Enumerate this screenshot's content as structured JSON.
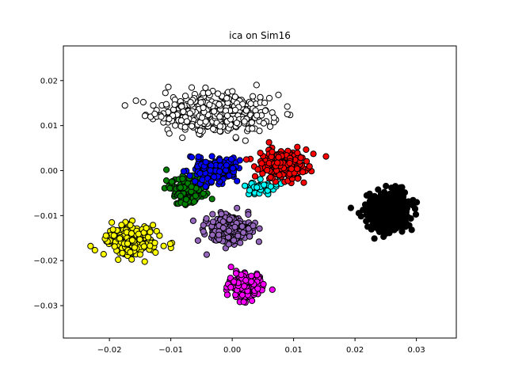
{
  "chart_data": {
    "type": "scatter",
    "title": "ica on Sim16",
    "xlabel": "",
    "ylabel": "",
    "xlim": [
      -0.0275,
      0.0365
    ],
    "ylim": [
      -0.0372,
      0.0277
    ],
    "xticks": [
      -0.02,
      -0.01,
      0.0,
      0.01,
      0.02,
      0.03
    ],
    "xtick_labels": [
      "−0.02",
      "−0.01",
      "0.00",
      "0.01",
      "0.02",
      "0.03"
    ],
    "yticks": [
      -0.03,
      -0.02,
      -0.01,
      0.0,
      0.01,
      0.02
    ],
    "ytick_labels": [
      "−0.03",
      "−0.02",
      "−0.01",
      "0.00",
      "0.01",
      "0.02"
    ],
    "grid": false,
    "legend": "none",
    "marker_edge_color": "#000000",
    "series": [
      {
        "color": "#ffffff",
        "center": [
          -0.003,
          0.0125
        ],
        "spread": [
          0.0085,
          0.0038
        ],
        "count": 420
      },
      {
        "color": "#000000",
        "center": [
          0.0255,
          -0.009
        ],
        "spread": [
          0.0033,
          0.0037
        ],
        "count": 520
      },
      {
        "color": "#ffff00",
        "center": [
          -0.0165,
          -0.0155
        ],
        "spread": [
          0.0036,
          0.0028
        ],
        "count": 330
      },
      {
        "color": "#008000",
        "center": [
          -0.0075,
          -0.0045
        ],
        "spread": [
          0.0028,
          0.0026
        ],
        "count": 150
      },
      {
        "color": "#9467bd",
        "center": [
          -0.0005,
          -0.013
        ],
        "spread": [
          0.0032,
          0.0028
        ],
        "count": 240
      },
      {
        "color": "#ff00ff",
        "center": [
          0.002,
          -0.0255
        ],
        "spread": [
          0.0025,
          0.0025
        ],
        "count": 150
      },
      {
        "color": "#00ffff",
        "center": [
          0.0045,
          -0.0035
        ],
        "spread": [
          0.0025,
          0.0018
        ],
        "count": 45
      },
      {
        "color": "#ff0000",
        "center": [
          0.0085,
          0.0015
        ],
        "spread": [
          0.0036,
          0.0028
        ],
        "count": 260
      },
      {
        "color": "#0000ff",
        "center": [
          -0.0025,
          0.0
        ],
        "spread": [
          0.0032,
          0.0025
        ],
        "count": 210
      }
    ]
  }
}
